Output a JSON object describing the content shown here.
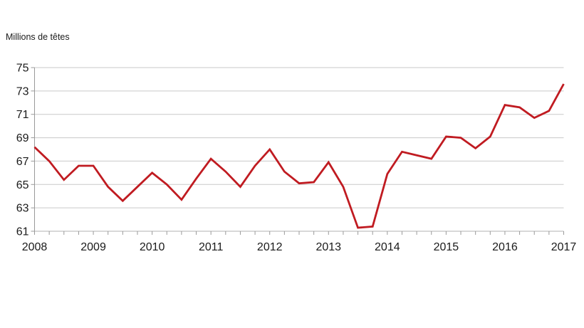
{
  "unit_label": "Millions de têtes",
  "chart_data": {
    "type": "line",
    "title": "",
    "unit_label": "Millions de têtes",
    "xlabel": "",
    "ylabel": "Millions de têtes",
    "ylim": [
      61,
      75
    ],
    "ytick_step": 2,
    "y_ticks": [
      75,
      73,
      71,
      69,
      67,
      65,
      63,
      61
    ],
    "x_tick_labels": [
      "2008",
      "2009",
      "2010",
      "2011",
      "2012",
      "2013",
      "2014",
      "2015",
      "2016",
      "2017"
    ],
    "x_ticks_per_year": 4,
    "x_start": 2008.0,
    "x_step_years": 0.25,
    "grid": "horizontal",
    "legend": "none",
    "colors": {
      "line": "#c01b21",
      "gridline": "#c9c9c9",
      "axis": "#9a9a9a",
      "baseline": "#b0b0b0",
      "text": "#1a1a1a"
    },
    "series": [
      {
        "name": "Millions de têtes",
        "color": "#c01b21",
        "values": [
          68.2,
          67.0,
          65.4,
          66.6,
          66.6,
          64.8,
          63.6,
          64.8,
          66.0,
          65.0,
          63.7,
          65.5,
          67.2,
          66.1,
          64.8,
          66.6,
          68.0,
          66.1,
          65.1,
          65.2,
          66.9,
          64.8,
          61.3,
          61.4,
          65.9,
          67.8,
          67.5,
          67.2,
          69.1,
          69.0,
          68.1,
          69.1,
          71.8,
          71.6,
          70.7,
          71.3,
          73.6
        ]
      }
    ]
  }
}
